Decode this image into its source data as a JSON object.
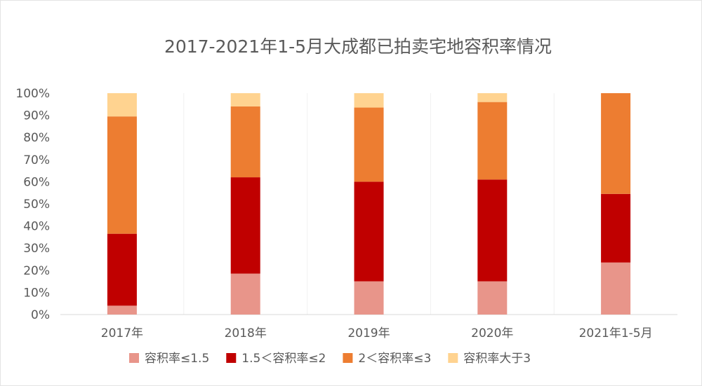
{
  "chart_data": {
    "type": "bar",
    "stacked": true,
    "title": "2017-2021年1-5月大成都已拍卖宅地容积率情况",
    "xlabel": "",
    "ylabel": "",
    "categories": [
      "2017年",
      "2018年",
      "2019年",
      "2020年",
      "2021年1-5月"
    ],
    "ylim": [
      0,
      100
    ],
    "yticks": [
      "0%",
      "10%",
      "20%",
      "30%",
      "40%",
      "50%",
      "60%",
      "70%",
      "80%",
      "90%",
      "100%"
    ],
    "series": [
      {
        "name": "容积率≤1.5",
        "color": "#E8958A",
        "values": [
          4,
          18.5,
          15,
          15,
          23.5
        ]
      },
      {
        "name": "1.5＜容积率≤2",
        "color": "#C00000",
        "values": [
          32.5,
          43.5,
          45,
          46,
          31
        ]
      },
      {
        "name": "2＜容积率≤3",
        "color": "#ED7D31",
        "values": [
          53,
          32,
          33.5,
          35,
          45.5
        ]
      },
      {
        "name": "容积率大于3",
        "color": "#FFD390",
        "values": [
          10.5,
          6,
          6.5,
          4,
          0
        ]
      }
    ],
    "grid": true,
    "legend": "bottom"
  }
}
